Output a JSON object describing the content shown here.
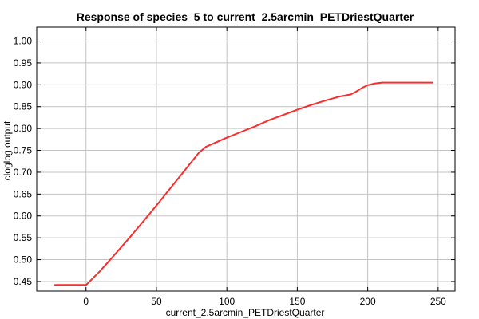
{
  "chart_data": {
    "type": "line",
    "title": "Response of species_5 to current_2.5arcmin_PETDriestQuarter",
    "xlabel": "current_2.5arcmin_PETDriestQuarter",
    "ylabel": "cloglog output",
    "xlim": [
      -35,
      262
    ],
    "ylim": [
      0.428,
      1.032
    ],
    "x_ticks": [
      0,
      50,
      100,
      150,
      200,
      250
    ],
    "y_ticks": [
      0.45,
      0.5,
      0.55,
      0.6,
      0.65,
      0.7,
      0.75,
      0.8,
      0.85,
      0.9,
      0.95,
      1.0
    ],
    "y_tick_labels": [
      "0.45",
      "0.50",
      "0.55",
      "0.60",
      "0.65",
      "0.70",
      "0.75",
      "0.80",
      "0.85",
      "0.90",
      "0.95",
      "1.00"
    ],
    "grid": true,
    "series": [
      {
        "color": "#ff2a2a",
        "x": [
          -22,
          0,
          10,
          20,
          30,
          40,
          50,
          60,
          70,
          80,
          85,
          90,
          100,
          110,
          120,
          130,
          140,
          150,
          160,
          170,
          180,
          188,
          192,
          196,
          200,
          205,
          210,
          220,
          230,
          246
        ],
        "y": [
          0.442,
          0.442,
          0.474,
          0.51,
          0.547,
          0.585,
          0.624,
          0.664,
          0.704,
          0.744,
          0.758,
          0.765,
          0.779,
          0.792,
          0.805,
          0.819,
          0.831,
          0.843,
          0.854,
          0.864,
          0.873,
          0.878,
          0.885,
          0.893,
          0.899,
          0.903,
          0.905,
          0.905,
          0.905,
          0.905
        ]
      }
    ]
  }
}
